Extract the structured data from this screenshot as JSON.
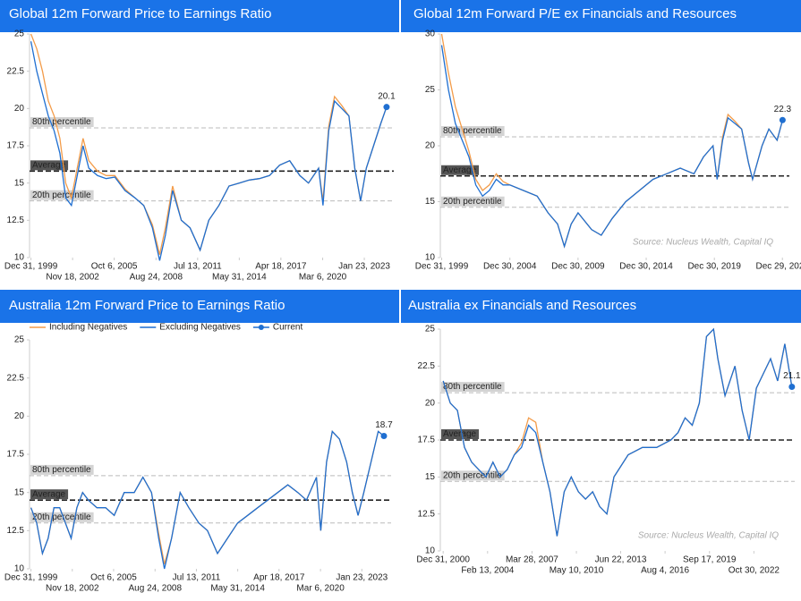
{
  "chart_data": [
    {
      "type": "line",
      "title": "Global 12m Forward Price to Earnings Ratio",
      "x": [
        2000,
        2000.4,
        2000.8,
        2001.2,
        2001.6,
        2002,
        2002.4,
        2002.8,
        2003.2,
        2003.6,
        2004,
        2004.6,
        2005.2,
        2005.8,
        2006.5,
        2007.2,
        2007.8,
        2008.4,
        2008.9,
        2009.3,
        2009.8,
        2010.4,
        2011,
        2011.7,
        2012.3,
        2013,
        2013.7,
        2014.4,
        2015.1,
        2015.8,
        2016.5,
        2017.2,
        2017.9,
        2018.6,
        2019.2,
        2019.9,
        2020.2,
        2020.6,
        2021,
        2021.5,
        2022,
        2022.4,
        2022.8,
        2023.2,
        2023.7,
        2024.2,
        2024.6
      ],
      "series": [
        {
          "color": "#f39c4a",
          "values": [
            25,
            24,
            22.5,
            20.5,
            19.5,
            18,
            15,
            14,
            16,
            18,
            16.5,
            15.8,
            15.5,
            15.5,
            14.6,
            14,
            13.5,
            12.2,
            10.2,
            12,
            14.8,
            12.5,
            12,
            10.5,
            12.5,
            13.5,
            14.8,
            15,
            15.2,
            15.3,
            15.5,
            16.2,
            16.5,
            15.5,
            15,
            16,
            13.8,
            18.8,
            20.8,
            20.2,
            19.5,
            16,
            13.8,
            16,
            17.5,
            19,
            20.1
          ]
        },
        {
          "color": "#1f6fd1",
          "values": [
            24.5,
            22.5,
            21,
            19.5,
            18.5,
            17,
            14,
            13.5,
            15.5,
            17.5,
            16,
            15.5,
            15.3,
            15.4,
            14.5,
            14,
            13.5,
            12,
            9.8,
            11.5,
            14.5,
            12.5,
            12,
            10.5,
            12.5,
            13.5,
            14.8,
            15,
            15.2,
            15.3,
            15.5,
            16.2,
            16.5,
            15.5,
            15,
            16,
            13.5,
            18.5,
            20.5,
            20,
            19.5,
            16,
            13.8,
            16,
            17.5,
            19,
            20.1
          ]
        }
      ],
      "current": {
        "x": 2024.6,
        "value": 20.1,
        "color": "#1f6fd1"
      },
      "reference_lines": [
        {
          "label": "80th percentile",
          "value": 18.7,
          "style": "percentile"
        },
        {
          "label": "Average",
          "value": 15.8,
          "style": "average"
        },
        {
          "label": "20th percentile",
          "value": 13.8,
          "style": "percentile"
        }
      ],
      "xlim": [
        1999.9,
        2025.1
      ],
      "xticks": [
        {
          "value": 2000.0,
          "label": "Dec 31, 1999"
        },
        {
          "value": 2002.88,
          "label": "Nov 18, 2002"
        },
        {
          "value": 2005.76,
          "label": "Oct 6, 2005"
        },
        {
          "value": 2008.65,
          "label": "Aug 24, 2008"
        },
        {
          "value": 2011.53,
          "label": "Jul 13, 2011"
        },
        {
          "value": 2014.41,
          "label": "May 31, 2014"
        },
        {
          "value": 2017.29,
          "label": "Apr 18, 2017"
        },
        {
          "value": 2020.18,
          "label": "Mar 6, 2020"
        },
        {
          "value": 2023.06,
          "label": "Jan 23, 2023"
        }
      ],
      "ylim": [
        10,
        25
      ],
      "yticks": [
        10,
        12.5,
        15,
        17.5,
        20,
        22.5,
        25
      ]
    },
    {
      "type": "line",
      "title": "Global 12m Forward P/E ex Financials and Resources",
      "x": [
        2000,
        2000.5,
        2001,
        2001.5,
        2002,
        2002.5,
        2003,
        2003.5,
        2004,
        2004.5,
        2005,
        2006,
        2007,
        2007.8,
        2008.5,
        2009,
        2009.5,
        2010,
        2011,
        2011.7,
        2012.5,
        2013.5,
        2014.5,
        2015.5,
        2016.5,
        2017.5,
        2018.5,
        2019.2,
        2019.9,
        2020.2,
        2020.6,
        2021,
        2021.5,
        2022,
        2022.5,
        2022.8,
        2023.5,
        2024,
        2024.6,
        2025
      ],
      "series": [
        {
          "color": "#f39c4a",
          "values": [
            30,
            26.5,
            23.5,
            21.5,
            19.5,
            17,
            16,
            16.5,
            17.5,
            16.8,
            16.5,
            16,
            15.5,
            14,
            13,
            11,
            13,
            14,
            12.5,
            12,
            13.5,
            15,
            16,
            17,
            17.5,
            18,
            17.5,
            19,
            20,
            17,
            20.8,
            22.8,
            22.2,
            21.5,
            18.5,
            17,
            20,
            21.5,
            20.5,
            22.3
          ]
        },
        {
          "color": "#1f6fd1",
          "values": [
            29,
            25,
            22,
            20.5,
            19,
            16.5,
            15.5,
            16,
            17,
            16.5,
            16.5,
            16,
            15.5,
            14,
            13,
            11,
            13,
            14,
            12.5,
            12,
            13.5,
            15,
            16,
            17,
            17.5,
            18,
            17.5,
            19,
            20,
            17,
            20.5,
            22.5,
            22,
            21.5,
            18.5,
            17,
            20,
            21.5,
            20.5,
            22.3
          ]
        }
      ],
      "current": {
        "x": 2025,
        "value": 22.3,
        "color": "#1f6fd1"
      },
      "reference_lines": [
        {
          "label": "80th percentile",
          "value": 20.8,
          "style": "percentile"
        },
        {
          "label": "Average",
          "value": 17.3,
          "style": "average"
        },
        {
          "label": "20th percentile",
          "value": 14.5,
          "style": "percentile"
        }
      ],
      "source": "Source: Nucleus Wealth, Capital IQ",
      "xlim": [
        1999.9,
        2025.5
      ],
      "xticks": [
        {
          "value": 2000.0,
          "label": "Dec 31, 1999"
        },
        {
          "value": 2005.0,
          "label": "Dec 30, 2004"
        },
        {
          "value": 2010.0,
          "label": "Dec 30, 2009"
        },
        {
          "value": 2015.0,
          "label": "Dec 30, 2014"
        },
        {
          "value": 2020.0,
          "label": "Dec 30, 2019"
        },
        {
          "value": 2024.99,
          "label": "Dec 29, 2024"
        }
      ],
      "ylim": [
        10,
        30
      ],
      "yticks": [
        10,
        15,
        20,
        25,
        30
      ]
    },
    {
      "type": "line",
      "title": "Australia 12m Forward Price to Earnings Ratio",
      "legend": true,
      "x": [
        2000,
        2000.4,
        2000.8,
        2001.2,
        2001.6,
        2002,
        2002.4,
        2002.8,
        2003.2,
        2003.6,
        2004,
        2004.6,
        2005.2,
        2005.8,
        2006.5,
        2007.2,
        2007.8,
        2008.4,
        2008.9,
        2009.3,
        2009.8,
        2010.4,
        2011,
        2011.7,
        2012.3,
        2013,
        2013.7,
        2014.4,
        2015.1,
        2015.8,
        2016.5,
        2017.2,
        2017.9,
        2018.6,
        2019.2,
        2019.9,
        2020.2,
        2020.6,
        2021,
        2021.5,
        2022,
        2022.4,
        2022.8,
        2023.2,
        2023.7,
        2024.2,
        2024.6
      ],
      "series": [
        {
          "name": "Including Negatives",
          "color": "#f39c4a",
          "values": [
            14,
            13,
            11,
            12,
            14,
            14,
            13,
            12,
            14,
            15,
            14.5,
            14,
            14,
            13.5,
            15,
            15,
            16,
            15,
            12.3,
            10.3,
            12,
            15,
            14,
            13,
            12.5,
            11,
            12,
            13,
            13.5,
            14,
            14.5,
            15,
            15.5,
            15,
            14.5,
            16,
            12.5,
            17,
            19,
            18.5,
            17,
            15,
            13.5,
            15,
            17,
            19,
            18.7
          ]
        },
        {
          "name": "Excluding Negatives",
          "color": "#1f6fd1",
          "values": [
            14,
            13,
            11,
            12,
            14,
            14,
            13,
            12,
            14,
            15,
            14.5,
            14,
            14,
            13.5,
            15,
            15,
            16,
            15,
            12,
            10,
            12,
            15,
            14,
            13,
            12.5,
            11,
            12,
            13,
            13.5,
            14,
            14.5,
            15,
            15.5,
            15,
            14.5,
            16,
            12.5,
            17,
            19,
            18.5,
            17,
            15,
            13.5,
            15,
            17,
            19,
            18.7
          ]
        }
      ],
      "current": {
        "name": "Current",
        "x": 2024.6,
        "value": 18.7,
        "color": "#1f6fd1"
      },
      "reference_lines": [
        {
          "label": "80th percentile",
          "value": 16.1,
          "style": "percentile"
        },
        {
          "label": "Average",
          "value": 14.5,
          "style": "average"
        },
        {
          "label": "20th percentile",
          "value": 13.0,
          "style": "percentile"
        }
      ],
      "xlim": [
        1999.9,
        2025.1
      ],
      "xticks": [
        {
          "value": 2000.0,
          "label": "Dec 31, 1999"
        },
        {
          "value": 2002.88,
          "label": "Nov 18, 2002"
        },
        {
          "value": 2005.76,
          "label": "Oct 6, 2005"
        },
        {
          "value": 2008.65,
          "label": "Aug 24, 2008"
        },
        {
          "value": 2011.53,
          "label": "Jul 13, 2011"
        },
        {
          "value": 2014.41,
          "label": "May 31, 2014"
        },
        {
          "value": 2017.29,
          "label": "Apr 18, 2017"
        },
        {
          "value": 2020.18,
          "label": "Mar 6, 2020"
        },
        {
          "value": 2023.06,
          "label": "Jan 23, 2023"
        }
      ],
      "ylim": [
        10,
        25
      ],
      "yticks": [
        10,
        12.5,
        15,
        17.5,
        20,
        22.5,
        25
      ]
    },
    {
      "type": "line",
      "title": "Australia ex Financials and Resources",
      "x": [
        2001,
        2001.5,
        2002,
        2002.5,
        2003,
        2003.5,
        2004,
        2004.5,
        2005,
        2005.5,
        2006,
        2006.5,
        2007,
        2007.5,
        2008,
        2008.5,
        2009,
        2009.5,
        2010,
        2010.5,
        2011,
        2011.5,
        2012,
        2012.5,
        2013,
        2014,
        2015,
        2016,
        2017,
        2017.5,
        2018,
        2018.5,
        2019,
        2019.5,
        2020,
        2020.3,
        2020.8,
        2021.5,
        2022,
        2022.5,
        2023,
        2023.5,
        2024,
        2024.5,
        2025,
        2025.5
      ],
      "series": [
        {
          "color": "#f39c4a",
          "values": [
            21.5,
            20,
            19.5,
            17,
            16,
            15.5,
            15,
            16,
            15,
            15.5,
            16.5,
            17.3,
            19,
            18.7,
            16,
            14,
            11,
            14,
            15,
            14,
            13.5,
            14,
            13,
            12.5,
            15,
            16.5,
            17,
            17,
            17.5,
            18,
            19,
            18.5,
            20,
            24.5,
            25,
            23,
            20.5,
            22.5,
            19.5,
            17.5,
            21,
            22,
            23,
            21.5,
            24,
            21.1
          ]
        },
        {
          "color": "#1f6fd1",
          "values": [
            21.5,
            20,
            19.5,
            17,
            16,
            15.5,
            15,
            16,
            15,
            15.5,
            16.5,
            17,
            18.5,
            18,
            16,
            14,
            11,
            14,
            15,
            14,
            13.5,
            14,
            13,
            12.5,
            15,
            16.5,
            17,
            17,
            17.5,
            18,
            19,
            18.5,
            20,
            24.5,
            25,
            23,
            20.5,
            22.5,
            19.5,
            17.5,
            21,
            22,
            23,
            21.5,
            24,
            21.1
          ]
        }
      ],
      "current": {
        "x": 2025.5,
        "value": 21.1,
        "color": "#1f6fd1"
      },
      "reference_lines": [
        {
          "label": "80th percentile",
          "value": 20.7,
          "style": "percentile"
        },
        {
          "label": "Average",
          "value": 17.5,
          "style": "average"
        },
        {
          "label": "20th percentile",
          "value": 14.7,
          "style": "percentile"
        }
      ],
      "source": "Source: Nucleus Wealth, Capital IQ",
      "xlim": [
        2000.8,
        2025.7
      ],
      "xticks": [
        {
          "value": 2001.0,
          "label": "Dec 31, 2000"
        },
        {
          "value": 2004.12,
          "label": "Feb 13, 2004"
        },
        {
          "value": 2007.24,
          "label": "Mar 28, 2007"
        },
        {
          "value": 2010.36,
          "label": "May 10, 2010"
        },
        {
          "value": 2013.47,
          "label": "Jun 22, 2013"
        },
        {
          "value": 2016.59,
          "label": "Aug 4, 2016"
        },
        {
          "value": 2019.71,
          "label": "Sep 17, 2019"
        },
        {
          "value": 2022.83,
          "label": "Oct 30, 2022"
        }
      ],
      "ylim": [
        10,
        25
      ],
      "yticks": [
        10,
        12.5,
        15,
        17.5,
        20,
        22.5,
        25
      ]
    }
  ]
}
